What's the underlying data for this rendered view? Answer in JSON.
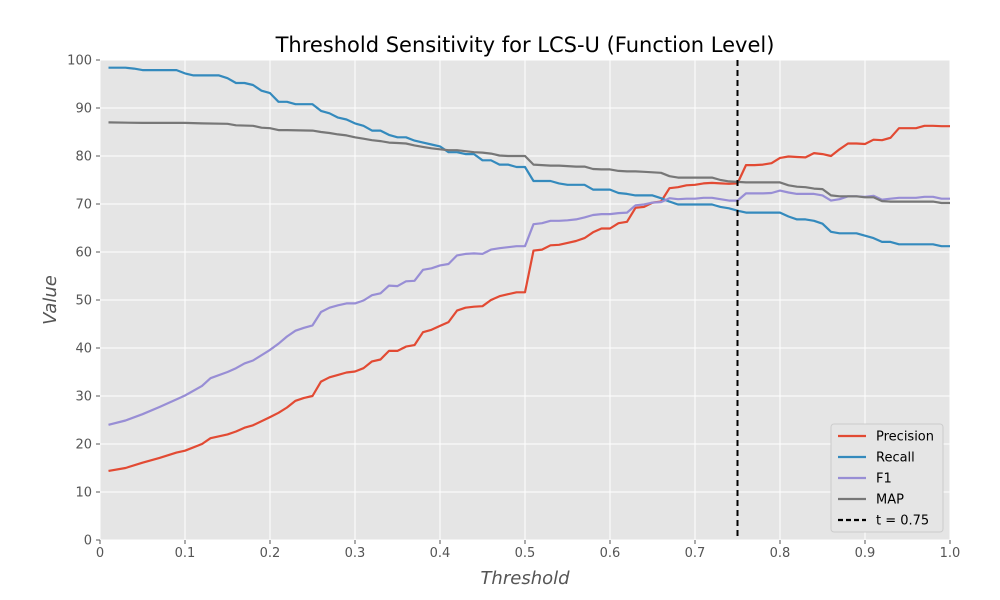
{
  "chart_data": {
    "type": "line",
    "title": "Threshold Sensitivity for LCS-U (Function Level)",
    "xlabel": "Threshold",
    "ylabel": "Value",
    "xlim": [
      0,
      1
    ],
    "ylim": [
      0,
      100
    ],
    "xticks": [
      "0",
      "0.1",
      "0.2",
      "0.3",
      "0.4",
      "0.5",
      "0.6",
      "0.7",
      "0.8",
      "0.9",
      "1.0"
    ],
    "yticks": [
      "0",
      "10",
      "20",
      "30",
      "40",
      "50",
      "60",
      "70",
      "80",
      "90",
      "100"
    ],
    "grid": true,
    "legend_position": "bottom-right",
    "series": [
      {
        "name": "Precision",
        "color": "#e24a33",
        "x": [
          0.01,
          0.03,
          0.05,
          0.07,
          0.09,
          0.1,
          0.12,
          0.13,
          0.15,
          0.16,
          0.17,
          0.18,
          0.2,
          0.21,
          0.22,
          0.23,
          0.24,
          0.25,
          0.26,
          0.27,
          0.28,
          0.29,
          0.3,
          0.31,
          0.32,
          0.33,
          0.34,
          0.35,
          0.36,
          0.37,
          0.38,
          0.39,
          0.4,
          0.41,
          0.42,
          0.43,
          0.44,
          0.45,
          0.46,
          0.47,
          0.48,
          0.49,
          0.5,
          0.51,
          0.52,
          0.53,
          0.54,
          0.55,
          0.56,
          0.57,
          0.58,
          0.59,
          0.6,
          0.61,
          0.62,
          0.63,
          0.64,
          0.65,
          0.66,
          0.67,
          0.68,
          0.69,
          0.7,
          0.71,
          0.72,
          0.73,
          0.74,
          0.75,
          0.76,
          0.77,
          0.78,
          0.79,
          0.8,
          0.81,
          0.82,
          0.83,
          0.84,
          0.85,
          0.86,
          0.87,
          0.88,
          0.89,
          0.9,
          0.91,
          0.92,
          0.93,
          0.94,
          0.95,
          0.96,
          0.97,
          0.98,
          0.99,
          1.0
        ],
        "values": [
          14.4,
          15.0,
          16.1,
          17.1,
          18.2,
          18.6,
          20.0,
          21.2,
          22.0,
          22.6,
          23.4,
          23.9,
          25.6,
          26.5,
          27.6,
          29.0,
          29.6,
          30.0,
          33.0,
          33.9,
          34.4,
          34.9,
          35.1,
          35.8,
          37.2,
          37.6,
          39.4,
          39.4,
          40.3,
          40.6,
          43.3,
          43.8,
          44.6,
          45.4,
          47.8,
          48.4,
          48.6,
          48.7,
          50.0,
          50.8,
          51.2,
          51.6,
          51.6,
          60.3,
          60.5,
          61.4,
          61.5,
          61.9,
          62.3,
          62.9,
          64.1,
          64.9,
          64.9,
          66.0,
          66.3,
          69.2,
          69.4,
          70.3,
          70.5,
          73.3,
          73.5,
          73.9,
          74.0,
          74.3,
          74.4,
          74.3,
          74.2,
          74.3,
          78.1,
          78.1,
          78.2,
          78.5,
          79.6,
          79.9,
          79.8,
          79.7,
          80.6,
          80.4,
          80.0,
          81.4,
          82.6,
          82.6,
          82.5,
          83.4,
          83.3,
          83.8,
          85.8,
          85.8,
          85.8,
          86.3,
          86.3,
          86.2,
          86.2
        ]
      },
      {
        "name": "Recall",
        "color": "#348abd",
        "x": [
          0.01,
          0.03,
          0.04,
          0.05,
          0.09,
          0.1,
          0.11,
          0.14,
          0.15,
          0.16,
          0.17,
          0.18,
          0.19,
          0.2,
          0.21,
          0.22,
          0.23,
          0.25,
          0.26,
          0.27,
          0.28,
          0.29,
          0.3,
          0.31,
          0.32,
          0.33,
          0.34,
          0.35,
          0.36,
          0.37,
          0.38,
          0.39,
          0.4,
          0.41,
          0.42,
          0.43,
          0.44,
          0.45,
          0.46,
          0.47,
          0.48,
          0.49,
          0.5,
          0.51,
          0.52,
          0.53,
          0.54,
          0.55,
          0.56,
          0.57,
          0.58,
          0.59,
          0.6,
          0.61,
          0.62,
          0.63,
          0.64,
          0.65,
          0.66,
          0.67,
          0.68,
          0.69,
          0.7,
          0.71,
          0.72,
          0.73,
          0.74,
          0.75,
          0.76,
          0.77,
          0.78,
          0.79,
          0.8,
          0.81,
          0.82,
          0.83,
          0.84,
          0.85,
          0.86,
          0.87,
          0.88,
          0.89,
          0.9,
          0.91,
          0.92,
          0.93,
          0.94,
          0.95,
          0.96,
          0.97,
          0.98,
          0.99,
          1.0
        ],
        "values": [
          98.4,
          98.4,
          98.2,
          97.9,
          97.9,
          97.2,
          96.8,
          96.8,
          96.2,
          95.2,
          95.2,
          94.8,
          93.6,
          93.1,
          91.3,
          91.3,
          90.8,
          90.8,
          89.4,
          88.9,
          88.0,
          87.6,
          86.8,
          86.3,
          85.3,
          85.3,
          84.4,
          83.9,
          83.9,
          83.2,
          82.8,
          82.4,
          82.0,
          80.8,
          80.8,
          80.4,
          80.4,
          79.1,
          79.1,
          78.2,
          78.2,
          77.7,
          77.7,
          74.8,
          74.8,
          74.8,
          74.3,
          74.0,
          74.0,
          74.0,
          73.0,
          73.0,
          73.0,
          72.3,
          72.1,
          71.8,
          71.8,
          71.8,
          71.2,
          70.5,
          69.9,
          69.9,
          69.9,
          69.9,
          69.9,
          69.4,
          69.1,
          68.6,
          68.2,
          68.2,
          68.2,
          68.2,
          68.2,
          67.4,
          66.8,
          66.8,
          66.5,
          65.9,
          64.2,
          63.9,
          63.9,
          63.9,
          63.4,
          62.9,
          62.1,
          62.1,
          61.6,
          61.6,
          61.6,
          61.6,
          61.6,
          61.2,
          61.2
        ]
      },
      {
        "name": "F1",
        "color": "#988ed5",
        "x": [
          0.01,
          0.03,
          0.05,
          0.07,
          0.09,
          0.1,
          0.12,
          0.13,
          0.15,
          0.16,
          0.17,
          0.18,
          0.2,
          0.21,
          0.22,
          0.23,
          0.24,
          0.25,
          0.26,
          0.27,
          0.28,
          0.29,
          0.3,
          0.31,
          0.32,
          0.33,
          0.34,
          0.35,
          0.36,
          0.37,
          0.38,
          0.39,
          0.4,
          0.41,
          0.42,
          0.43,
          0.44,
          0.45,
          0.46,
          0.47,
          0.48,
          0.49,
          0.5,
          0.51,
          0.52,
          0.53,
          0.54,
          0.55,
          0.56,
          0.57,
          0.58,
          0.59,
          0.6,
          0.61,
          0.62,
          0.63,
          0.64,
          0.65,
          0.66,
          0.67,
          0.68,
          0.69,
          0.7,
          0.71,
          0.72,
          0.73,
          0.74,
          0.75,
          0.76,
          0.77,
          0.78,
          0.79,
          0.8,
          0.81,
          0.82,
          0.83,
          0.84,
          0.85,
          0.86,
          0.87,
          0.88,
          0.89,
          0.9,
          0.91,
          0.92,
          0.93,
          0.94,
          0.95,
          0.96,
          0.97,
          0.98,
          0.99,
          1.0
        ],
        "values": [
          24.0,
          24.9,
          26.2,
          27.7,
          29.3,
          30.1,
          32.1,
          33.7,
          35.0,
          35.8,
          36.8,
          37.4,
          39.6,
          40.9,
          42.4,
          43.6,
          44.2,
          44.7,
          47.5,
          48.4,
          48.9,
          49.3,
          49.3,
          49.9,
          51.0,
          51.4,
          53.0,
          52.9,
          53.9,
          54.0,
          56.3,
          56.6,
          57.2,
          57.5,
          59.3,
          59.6,
          59.7,
          59.6,
          60.5,
          60.8,
          61.0,
          61.2,
          61.2,
          65.8,
          66.0,
          66.5,
          66.5,
          66.6,
          66.8,
          67.2,
          67.7,
          67.9,
          67.9,
          68.1,
          68.2,
          69.7,
          69.9,
          70.3,
          70.4,
          71.2,
          71.0,
          71.1,
          71.1,
          71.3,
          71.3,
          71.0,
          70.7,
          70.7,
          72.2,
          72.2,
          72.2,
          72.3,
          72.8,
          72.4,
          72.1,
          72.1,
          72.1,
          71.8,
          70.7,
          71.0,
          71.6,
          71.6,
          71.5,
          71.7,
          70.9,
          71.1,
          71.3,
          71.3,
          71.3,
          71.5,
          71.5,
          71.1,
          71.1
        ]
      },
      {
        "name": "MAP",
        "color": "#777777",
        "x": [
          0.01,
          0.05,
          0.1,
          0.12,
          0.15,
          0.16,
          0.18,
          0.19,
          0.2,
          0.21,
          0.22,
          0.25,
          0.26,
          0.27,
          0.28,
          0.29,
          0.3,
          0.31,
          0.32,
          0.33,
          0.34,
          0.35,
          0.36,
          0.37,
          0.38,
          0.39,
          0.4,
          0.41,
          0.42,
          0.43,
          0.44,
          0.45,
          0.46,
          0.47,
          0.48,
          0.49,
          0.5,
          0.51,
          0.52,
          0.53,
          0.54,
          0.55,
          0.56,
          0.57,
          0.58,
          0.59,
          0.6,
          0.61,
          0.62,
          0.63,
          0.64,
          0.65,
          0.66,
          0.67,
          0.68,
          0.69,
          0.7,
          0.71,
          0.72,
          0.73,
          0.74,
          0.75,
          0.76,
          0.77,
          0.78,
          0.79,
          0.8,
          0.81,
          0.82,
          0.83,
          0.84,
          0.85,
          0.86,
          0.87,
          0.88,
          0.89,
          0.9,
          0.91,
          0.92,
          0.93,
          0.94,
          0.95,
          0.96,
          0.97,
          0.98,
          0.99,
          1.0
        ],
        "values": [
          87.0,
          86.9,
          86.9,
          86.8,
          86.7,
          86.4,
          86.3,
          85.9,
          85.8,
          85.4,
          85.4,
          85.3,
          85.0,
          84.8,
          84.5,
          84.3,
          83.9,
          83.6,
          83.3,
          83.1,
          82.8,
          82.7,
          82.6,
          82.2,
          81.9,
          81.6,
          81.4,
          81.2,
          81.2,
          81.0,
          80.8,
          80.7,
          80.5,
          80.1,
          80.0,
          80.0,
          80.0,
          78.2,
          78.1,
          78.0,
          78.0,
          77.9,
          77.8,
          77.8,
          77.3,
          77.2,
          77.2,
          76.9,
          76.8,
          76.8,
          76.7,
          76.6,
          76.5,
          75.8,
          75.5,
          75.5,
          75.5,
          75.5,
          75.5,
          75.0,
          74.7,
          74.6,
          74.5,
          74.5,
          74.5,
          74.5,
          74.5,
          73.9,
          73.6,
          73.5,
          73.2,
          73.1,
          71.8,
          71.6,
          71.6,
          71.6,
          71.4,
          71.4,
          70.6,
          70.5,
          70.5,
          70.5,
          70.5,
          70.5,
          70.5,
          70.2,
          70.2
        ]
      }
    ],
    "threshold_line": {
      "x": 0.75,
      "label": "t = 0.75",
      "color": "#000000"
    }
  }
}
